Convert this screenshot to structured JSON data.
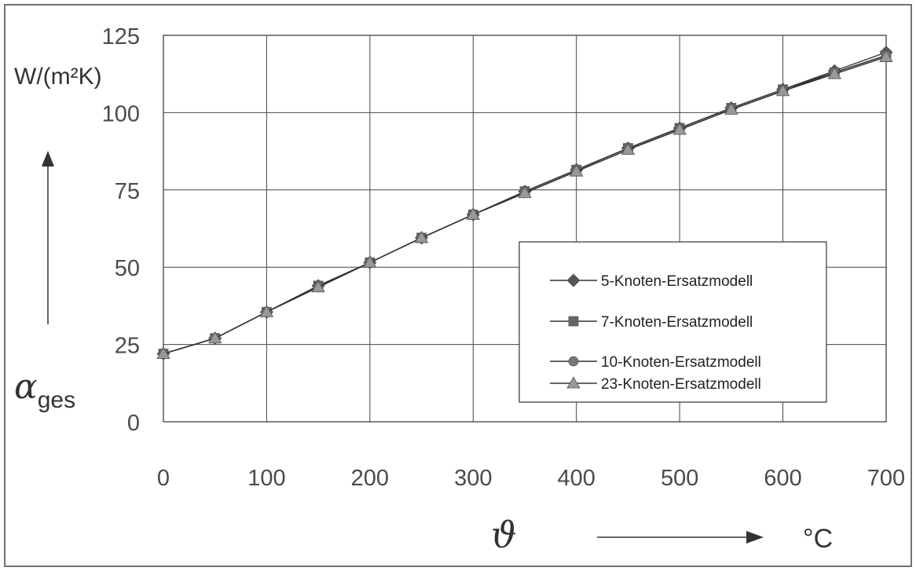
{
  "chart_data": {
    "type": "line",
    "x": [
      0,
      50,
      100,
      150,
      200,
      250,
      300,
      350,
      400,
      450,
      500,
      550,
      600,
      650,
      700
    ],
    "xlim": [
      0,
      700
    ],
    "ylim": [
      0,
      125
    ],
    "xticks": [
      "0",
      "100",
      "200",
      "300",
      "400",
      "500",
      "600",
      "700"
    ],
    "xtick_values": [
      0,
      100,
      200,
      300,
      400,
      500,
      600,
      700
    ],
    "yticks": [
      "0",
      "25",
      "50",
      "75",
      "100",
      "125"
    ],
    "ytick_values": [
      0,
      25,
      50,
      75,
      100,
      125
    ],
    "ylabel_symbol": "α",
    "ylabel_subscript": "ges",
    "yunit": "W/(m²K)",
    "xlabel_symbol": "ϑ",
    "xunit": "°C",
    "grid": true,
    "legend_position": "right",
    "series": [
      {
        "name": "5-Knoten-Ersatzmodell",
        "marker": "diamond",
        "color": "#555555",
        "values": [
          22,
          27,
          35.5,
          44,
          51.5,
          59.5,
          67,
          74.5,
          81.5,
          88.5,
          95,
          101.5,
          107.5,
          113.5,
          119.5
        ]
      },
      {
        "name": "7-Knoten-Ersatzmodell",
        "marker": "square",
        "color": "#666666",
        "values": [
          22,
          27,
          35.5,
          44,
          51.5,
          59.5,
          67,
          74.5,
          81.5,
          88.5,
          95,
          101.5,
          107.5,
          113,
          118.5
        ]
      },
      {
        "name": "10-Knoten-Ersatzmodell",
        "marker": "circle",
        "color": "#777777",
        "values": [
          22,
          27,
          35.5,
          43.5,
          51.5,
          59.5,
          67,
          74,
          81,
          88,
          94.5,
          101,
          107,
          113,
          118.5
        ]
      },
      {
        "name": "23-Knoten-Ersatzmodell",
        "marker": "triangle",
        "color": "#999999",
        "values": [
          22,
          27,
          35.5,
          43.5,
          51.5,
          59.5,
          67,
          74,
          81,
          88,
          94.5,
          101,
          107,
          112.5,
          118
        ]
      }
    ]
  }
}
